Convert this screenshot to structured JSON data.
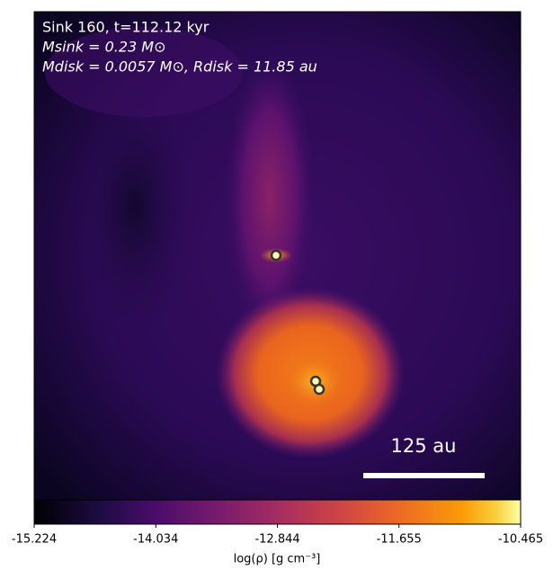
{
  "chart_data": {
    "type": "heatmap",
    "annotations": [
      "Sink 160, t=112.12 kyr",
      "Msink = 0.23 M⊙",
      "Mdisk = 0.0057 M⊙, Rdisk = 11.85 au"
    ],
    "scale_bar_label": "125 au",
    "colorbar_label": "log(ρ) [g cm⁻³]",
    "clim": [
      -15.224,
      -10.465
    ],
    "cticks": [
      -15.224,
      -14.034,
      -12.844,
      -11.655,
      -10.465
    ],
    "colormap": "inferno"
  }
}
